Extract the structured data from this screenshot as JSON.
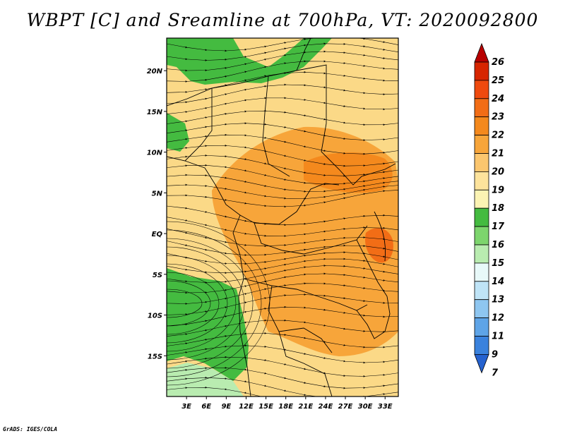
{
  "title": "WBPT [C] and Sreamline at 700hPa, VT: 2020092800",
  "credit": "GrADS: IGES/COLA",
  "map": {
    "lon_range": [
      0,
      35
    ],
    "lat_range": [
      -20,
      24
    ],
    "x_ticks": [
      "3E",
      "6E",
      "9E",
      "12E",
      "15E",
      "18E",
      "21E",
      "24E",
      "27E",
      "30E",
      "33E"
    ],
    "x_tick_values": [
      3,
      6,
      9,
      12,
      15,
      18,
      21,
      24,
      27,
      30,
      33
    ],
    "y_ticks": [
      "20N",
      "15N",
      "10N",
      "5N",
      "EQ",
      "5S",
      "10S",
      "15S"
    ],
    "y_tick_values": [
      20,
      15,
      10,
      5,
      0,
      -5,
      -10,
      -15
    ],
    "regions": [
      {
        "name": "n-green",
        "level": 17
      },
      {
        "name": "nw-green",
        "level": 17
      },
      {
        "name": "sw-green",
        "level": 17
      },
      {
        "name": "sw-light",
        "level": 15
      },
      {
        "name": "central-orange",
        "level": 21
      },
      {
        "name": "south-orange",
        "level": 21
      },
      {
        "name": "ne-orange",
        "level": 22
      },
      {
        "name": "lake-hot",
        "level": 23
      }
    ]
  },
  "colorbar": {
    "labels": [
      "26",
      "25",
      "24",
      "23",
      "22",
      "21",
      "20",
      "19",
      "18",
      "17",
      "16",
      "15",
      "14",
      "13",
      "12",
      "11",
      "9",
      "7"
    ],
    "colors": [
      "#b80000",
      "#d72500",
      "#ef4a0e",
      "#f26d16",
      "#f4891d",
      "#f7a53a",
      "#fbc66e",
      "#fde39c",
      "#fbf3b3",
      "#44bb40",
      "#7dd56d",
      "#b9ecb0",
      "#e8f9f9",
      "#bfe4f7",
      "#8ec6f0",
      "#5ea4e7",
      "#3a82dd",
      "#2562cf"
    ]
  }
}
